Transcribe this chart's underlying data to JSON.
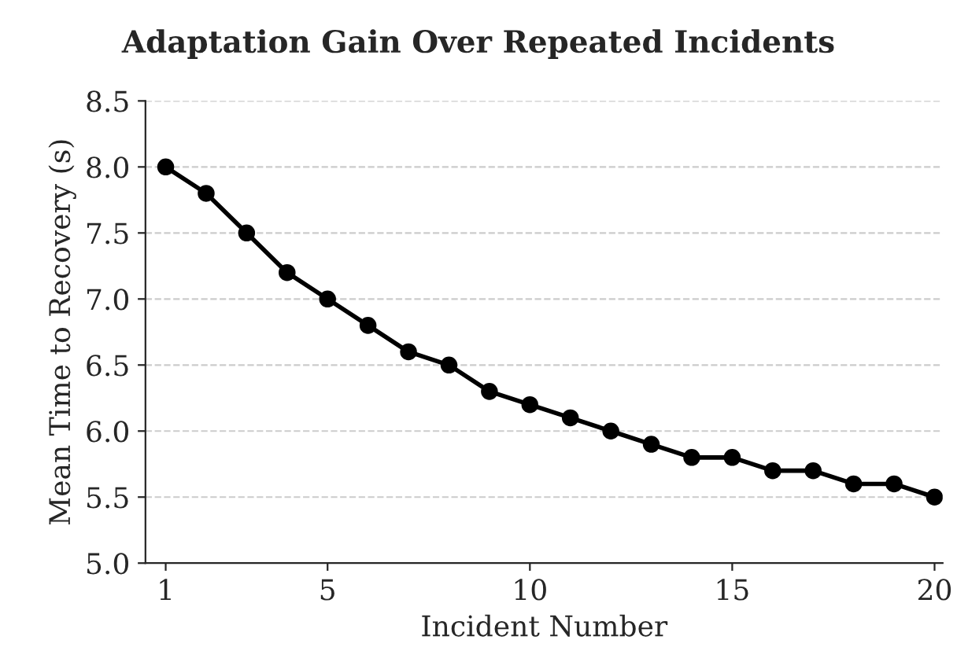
{
  "chart_data": {
    "type": "line",
    "title": "Adaptation Gain Over Repeated Incidents",
    "xlabel": "Incident Number",
    "ylabel": "Mean Time to Recovery (s)",
    "x": [
      1,
      2,
      3,
      4,
      5,
      6,
      7,
      8,
      9,
      10,
      11,
      12,
      13,
      14,
      15,
      16,
      17,
      18,
      19,
      20
    ],
    "series": [
      {
        "color": "#000000",
        "values": [
          8.0,
          7.8,
          7.5,
          7.2,
          7.0,
          6.8,
          6.6,
          6.5,
          6.3,
          6.2,
          6.1,
          6.0,
          5.9,
          5.8,
          5.8,
          5.7,
          5.7,
          5.6,
          5.6,
          5.5
        ]
      }
    ],
    "xlim": [
      0.5,
      20.2
    ],
    "xticks": [
      1,
      5,
      10,
      15,
      20
    ],
    "ylim": [
      5.0,
      8.5
    ],
    "yticks": [
      {
        "value": 5.0,
        "label": "5.0"
      },
      {
        "value": 5.5,
        "label": "5.5"
      },
      {
        "value": 6.0,
        "label": "6.0"
      },
      {
        "value": 6.5,
        "label": "6.5"
      },
      {
        "value": 7.0,
        "label": "7.0"
      },
      {
        "value": 7.5,
        "label": "7.5"
      },
      {
        "value": 8.0,
        "label": "8.0"
      },
      {
        "value": 8.5,
        "label": "8.5"
      }
    ],
    "grid": "y",
    "marker": "circle",
    "line_style": "solid"
  }
}
